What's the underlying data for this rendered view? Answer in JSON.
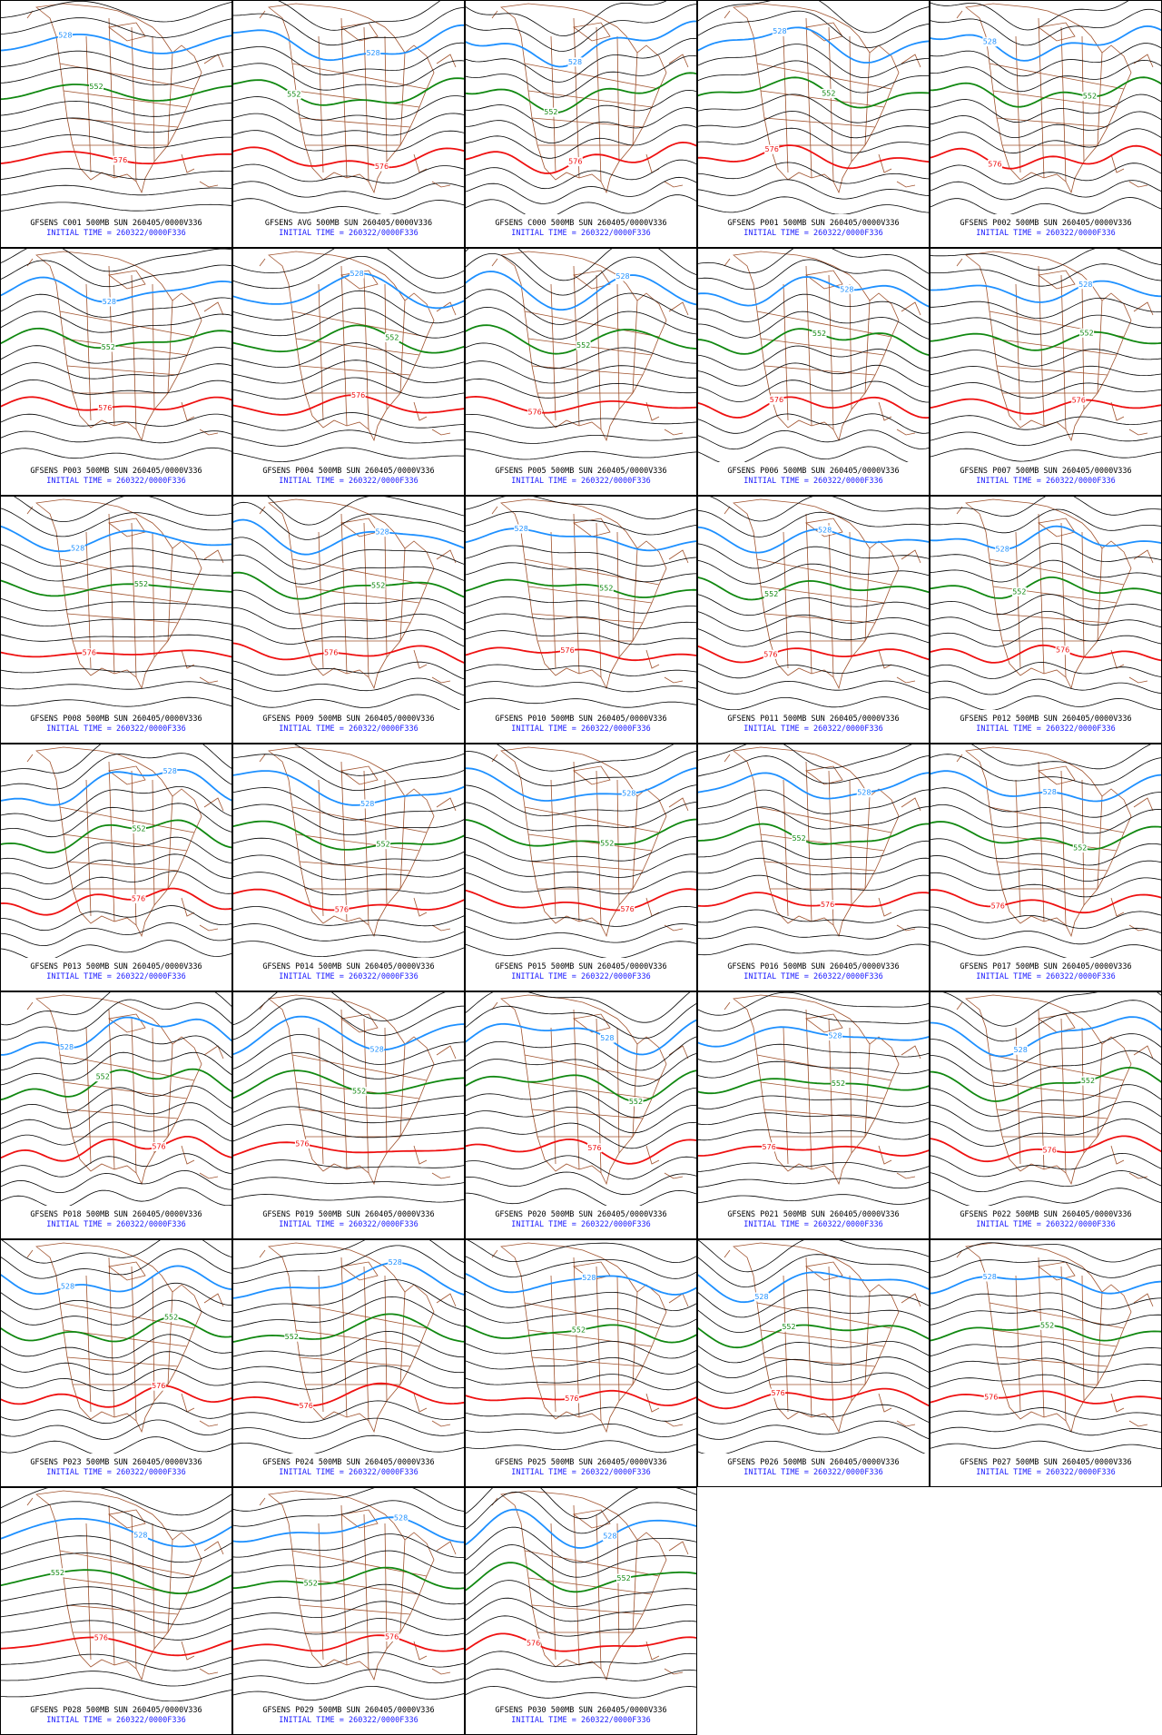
{
  "panels": [
    {
      "line1": "GFSENS C001 500MB SUN 260405/0000V336",
      "line2": "INITIAL TIME = 260322/0000F336",
      "contour_labels": [
        "528",
        "552",
        "576"
      ]
    },
    {
      "line1": "GFSENS AVG 500MB SUN 260405/0000V336",
      "line2": "INITIAL TIME = 260322/0000F336",
      "contour_labels": [
        "528",
        "552",
        "576"
      ]
    },
    {
      "line1": "GFSENS C000 500MB SUN 260405/0000V336",
      "line2": "INITIAL TIME = 260322/0000F336",
      "contour_labels": [
        "528",
        "552",
        "576"
      ]
    },
    {
      "line1": "GFSENS P001 500MB SUN 260405/0000V336",
      "line2": "INITIAL TIME = 260322/0000F336",
      "contour_labels": [
        "528",
        "552",
        "576"
      ]
    },
    {
      "line1": "GFSENS P002 500MB SUN 260405/0000V336",
      "line2": "INITIAL TIME = 260322/0000F336",
      "contour_labels": [
        "528",
        "552",
        "576"
      ]
    },
    {
      "line1": "GFSENS P003 500MB SUN 260405/0000V336",
      "line2": "INITIAL TIME = 260322/0000F336",
      "contour_labels": [
        "528",
        "552",
        "576"
      ]
    },
    {
      "line1": "GFSENS P004 500MB SUN 260405/0000V336",
      "line2": "INITIAL TIME = 260322/0000F336",
      "contour_labels": [
        "528",
        "552",
        "576"
      ]
    },
    {
      "line1": "GFSENS P005 500MB SUN 260405/0000V336",
      "line2": "INITIAL TIME = 260322/0000F336",
      "contour_labels": [
        "528",
        "552",
        "576"
      ]
    },
    {
      "line1": "GFSENS P006 500MB SUN 260405/0000V336",
      "line2": "INITIAL TIME = 260322/0000F336",
      "contour_labels": [
        "528",
        "552",
        "576"
      ]
    },
    {
      "line1": "GFSENS P007 500MB SUN 260405/0000V336",
      "line2": "INITIAL TIME = 260322/0000F336",
      "contour_labels": [
        "528",
        "552",
        "576"
      ]
    },
    {
      "line1": "GFSENS P008 500MB SUN 260405/0000V336",
      "line2": "INITIAL TIME = 260322/0000F336",
      "contour_labels": [
        "528",
        "552",
        "576"
      ]
    },
    {
      "line1": "GFSENS P009 500MB SUN 260405/0000V336",
      "line2": "INITIAL TIME = 260322/0000F336",
      "contour_labels": [
        "528",
        "552",
        "576"
      ]
    },
    {
      "line1": "GFSENS P010 500MB SUN 260405/0000V336",
      "line2": "INITIAL TIME = 260322/0000F336",
      "contour_labels": [
        "528",
        "552",
        "576"
      ]
    },
    {
      "line1": "GFSENS P011 500MB SUN 260405/0000V336",
      "line2": "INITIAL TIME = 260322/0000F336",
      "contour_labels": [
        "528",
        "552",
        "576"
      ]
    },
    {
      "line1": "GFSENS P012 500MB SUN 260405/0000V336",
      "line2": "INITIAL TIME = 260322/0000F336",
      "contour_labels": [
        "528",
        "552",
        "576"
      ]
    },
    {
      "line1": "GFSENS P013 500MB SUN 260405/0000V336",
      "line2": "INITIAL TIME = 260322/0000F336",
      "contour_labels": [
        "528",
        "552",
        "576"
      ]
    },
    {
      "line1": "GFSENS P014 500MB SUN 260405/0000V336",
      "line2": "INITIAL TIME = 260322/0000F336",
      "contour_labels": [
        "528",
        "552",
        "576"
      ]
    },
    {
      "line1": "GFSENS P015 500MB SUN 260405/0000V336",
      "line2": "INITIAL TIME = 260322/0000F336",
      "contour_labels": [
        "528",
        "552",
        "576"
      ]
    },
    {
      "line1": "GFSENS P016 500MB SUN 260405/0000V336",
      "line2": "INITIAL TIME = 260322/0000F336",
      "contour_labels": [
        "528",
        "552",
        "576"
      ]
    },
    {
      "line1": "GFSENS P017 500MB SUN 260405/0000V336",
      "line2": "INITIAL TIME = 260322/0000F336",
      "contour_labels": [
        "528",
        "552",
        "576"
      ]
    },
    {
      "line1": "GFSENS P018 500MB SUN 260405/0000V336",
      "line2": "INITIAL TIME = 260322/0000F336",
      "contour_labels": [
        "528",
        "552",
        "576"
      ]
    },
    {
      "line1": "GFSENS P019 500MB SUN 260405/0000V336",
      "line2": "INITIAL TIME = 260322/0000F336",
      "contour_labels": [
        "528",
        "552",
        "576"
      ]
    },
    {
      "line1": "GFSENS P020 500MB SUN 260405/0000V336",
      "line2": "INITIAL TIME = 260322/0000F336",
      "contour_labels": [
        "528",
        "552",
        "576"
      ]
    },
    {
      "line1": "GFSENS P021 500MB SUN 260405/0000V336",
      "line2": "INITIAL TIME = 260322/0000F336",
      "contour_labels": [
        "528",
        "552",
        "576"
      ]
    },
    {
      "line1": "GFSENS P022 500MB SUN 260405/0000V336",
      "line2": "INITIAL TIME = 260322/0000F336",
      "contour_labels": [
        "528",
        "552",
        "576"
      ]
    },
    {
      "line1": "GFSENS P023 500MB SUN 260405/0000V336",
      "line2": "INITIAL TIME = 260322/0000F336",
      "contour_labels": [
        "528",
        "552",
        "576"
      ]
    },
    {
      "line1": "GFSENS P024 500MB SUN 260405/0000V336",
      "line2": "INITIAL TIME = 260322/0000F336",
      "contour_labels": [
        "528",
        "552",
        "576"
      ]
    },
    {
      "line1": "GFSENS P025 500MB SUN 260405/0000V336",
      "line2": "INITIAL TIME = 260322/0000F336",
      "contour_labels": [
        "528",
        "552",
        "576"
      ]
    },
    {
      "line1": "GFSENS P026 500MB SUN 260405/0000V336",
      "line2": "INITIAL TIME = 260322/0000F336",
      "contour_labels": [
        "528",
        "552",
        "576"
      ]
    },
    {
      "line1": "GFSENS P027 500MB SUN 260405/0000V336",
      "line2": "INITIAL TIME = 260322/0000F336",
      "contour_labels": [
        "528",
        "552",
        "576"
      ]
    },
    {
      "line1": "GFSENS P028 500MB SUN 260405/0000V336",
      "line2": "INITIAL TIME = 260322/0000F336",
      "contour_labels": [
        "528",
        "552",
        "576"
      ]
    },
    {
      "line1": "GFSENS P029 500MB SUN 260405/0000V336",
      "line2": "INITIAL TIME = 260322/0000F336",
      "contour_labels": [
        "528",
        "552",
        "576"
      ]
    },
    {
      "line1": "GFSENS P030 500MB SUN 260405/0000V336",
      "line2": "INITIAL TIME = 260322/0000F336",
      "contour_labels": [
        "528",
        "552",
        "576"
      ]
    }
  ]
}
